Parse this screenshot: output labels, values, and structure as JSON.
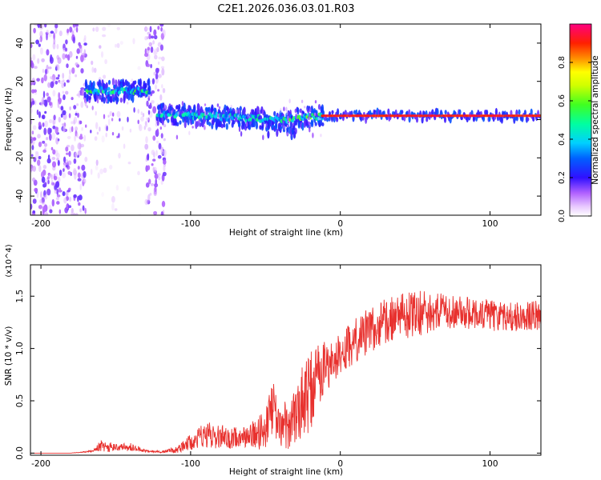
{
  "title": "C2E1.2026.036.03.01.R03",
  "chart_data": [
    {
      "type": "heatmap",
      "name": "spectrogram",
      "xlabel": "Height of straight line (km)",
      "ylabel": "Frequency (Hz)",
      "xlim": [
        -207,
        134
      ],
      "ylim": [
        -50,
        50
      ],
      "xticks": [
        -200,
        -100,
        0,
        100
      ],
      "xtick_labels": [
        "-200",
        "-100",
        "0",
        "100"
      ],
      "yticks": [
        -40,
        -20,
        0,
        20,
        40
      ],
      "ytick_labels": [
        "-40",
        "-20",
        "0",
        "20",
        "40"
      ],
      "colorbar": {
        "label": "Normalized spectral amplitude",
        "range": [
          0,
          1
        ],
        "ticks": [
          0.0,
          0.2,
          0.4,
          0.6,
          0.8
        ],
        "tick_labels": [
          "0.0",
          "0.2",
          "0.4",
          "0.6",
          "0.8"
        ],
        "colors": [
          "#ffffff",
          "#c890ff",
          "#6a00ff",
          "#0000ff",
          "#00c8ff",
          "#00ff80",
          "#80ff00",
          "#ffff00",
          "#ff8000",
          "#ff0000",
          "#ff0080"
        ]
      },
      "features": [
        {
          "x_range": [
            -207,
            -170
          ],
          "freq_range": [
            -50,
            50
          ],
          "amplitude": 0.15,
          "kind": "broadband noise"
        },
        {
          "x_range": [
            -170,
            -160
          ],
          "freq_range": [
            -50,
            50
          ],
          "amplitude": 0.08,
          "kind": "sparse noise"
        },
        {
          "x_range": [
            -160,
            -130
          ],
          "freq_range": [
            -50,
            50
          ],
          "amplitude": 0.05,
          "kind": "sparse noise"
        },
        {
          "x_range": [
            -130,
            -117
          ],
          "freq_range": [
            -50,
            50
          ],
          "amplitude": 0.15,
          "kind": "broadband noise"
        },
        {
          "x_range": [
            -170,
            -127
          ],
          "freq_center": 15,
          "amplitude": 0.5,
          "kind": "tone"
        },
        {
          "x_range": [
            -122,
            -40
          ],
          "freq_center_start": 3,
          "freq_center_end": 0,
          "amplitude": 0.45,
          "kind": "tone"
        },
        {
          "x_range": [
            -40,
            -12
          ],
          "freq_center_start": 0,
          "freq_center_end": 2,
          "amplitude": 0.55,
          "kind": "tone"
        },
        {
          "x_range": [
            -12,
            134
          ],
          "freq_center": 2,
          "amplitude": 0.95,
          "kind": "tone"
        }
      ]
    },
    {
      "type": "line",
      "name": "snr",
      "xlabel": "Height of straight line (km)",
      "ylabel": "SNR (10 * v/v)",
      "y_multiplier": "(x10^4)",
      "xlim": [
        -207,
        134
      ],
      "ylim": [
        -0.02,
        1.8
      ],
      "xticks": [
        -200,
        -100,
        0,
        100
      ],
      "xtick_labels": [
        "-200",
        "-100",
        "0",
        "100"
      ],
      "yticks": [
        0.0,
        0.5,
        1.0,
        1.5
      ],
      "ytick_labels": [
        "0.0",
        "0.5",
        "1.0",
        "1.5"
      ],
      "color": "#e8312e",
      "series": [
        {
          "name": "SNR",
          "x": [
            -207,
            -180,
            -165,
            -160,
            -150,
            -140,
            -130,
            -120,
            -110,
            -100,
            -90,
            -80,
            -70,
            -60,
            -50,
            -45,
            -40,
            -35,
            -30,
            -25,
            -20,
            -15,
            -10,
            -5,
            0,
            10,
            20,
            30,
            40,
            50,
            60,
            70,
            80,
            90,
            100,
            110,
            120,
            134
          ],
          "mean": [
            0.0,
            0.0,
            0.02,
            0.07,
            0.05,
            0.06,
            0.02,
            0.01,
            0.03,
            0.1,
            0.18,
            0.15,
            0.15,
            0.17,
            0.22,
            0.45,
            0.25,
            0.28,
            0.35,
            0.5,
            0.6,
            0.75,
            0.82,
            0.88,
            0.95,
            1.07,
            1.18,
            1.26,
            1.3,
            1.33,
            1.35,
            1.35,
            1.34,
            1.33,
            1.32,
            1.3,
            1.3,
            1.32
          ],
          "spread": [
            0.0,
            0.0,
            0.01,
            0.06,
            0.04,
            0.04,
            0.01,
            0.01,
            0.03,
            0.08,
            0.12,
            0.12,
            0.1,
            0.12,
            0.2,
            0.25,
            0.2,
            0.25,
            0.25,
            0.35,
            0.4,
            0.3,
            0.25,
            0.22,
            0.2,
            0.22,
            0.22,
            0.22,
            0.22,
            0.22,
            0.2,
            0.18,
            0.16,
            0.15,
            0.15,
            0.14,
            0.14,
            0.14
          ]
        }
      ]
    }
  ]
}
